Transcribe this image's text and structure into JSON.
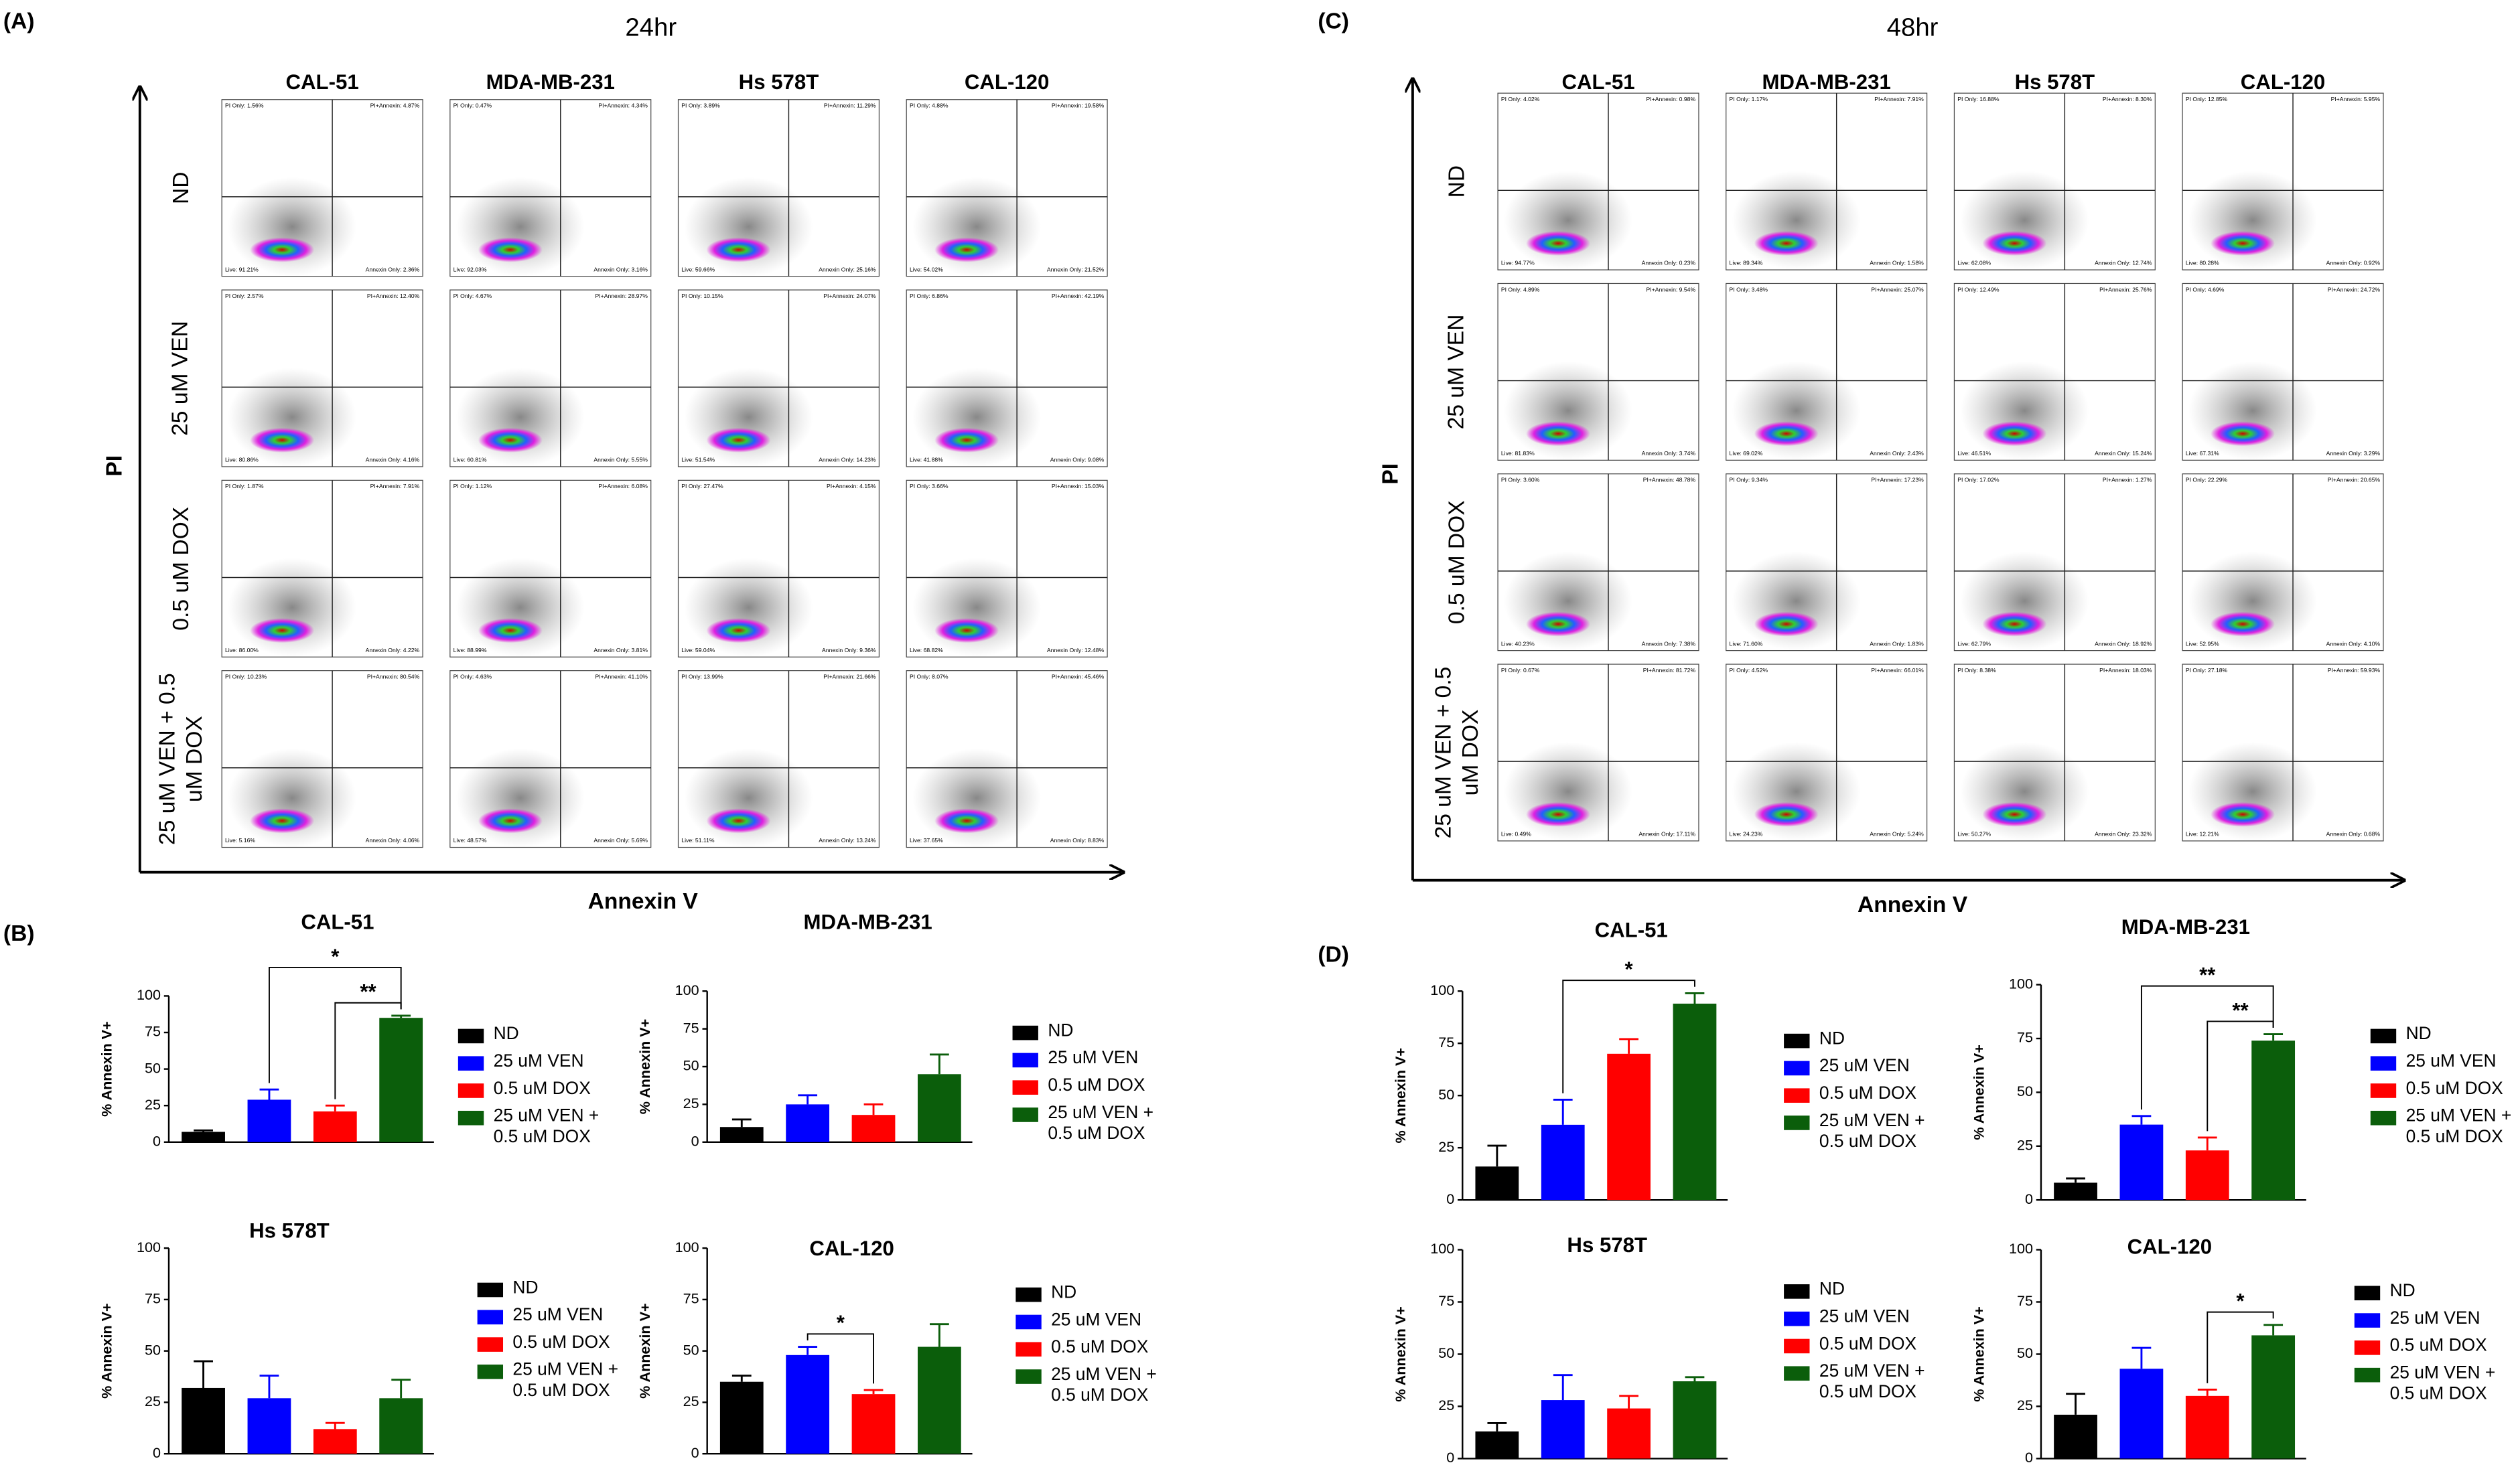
{
  "panels": [
    {
      "label": "(A)",
      "title": "24hr",
      "y_label": "PI",
      "x_label": "Annexin V",
      "columns": [
        "CAL-51",
        "MDA-MB-231",
        "Hs 578T",
        "CAL-120"
      ],
      "rows": [
        "ND",
        "25 uM VEN",
        "0.5 uM DOX",
        "25 uM VEN + 0.5 uM DOX"
      ],
      "plots": [
        [
          [
            "PI Only: 1.56%",
            "PI+Annexin: 4.87%",
            "Live: 91.21%",
            "Annexin Only: 2.36%"
          ],
          [
            "PI Only: 0.47%",
            "PI+Annexin: 4.34%",
            "Live: 92.03%",
            "Annexin Only: 3.16%"
          ],
          [
            "PI Only: 3.89%",
            "PI+Annexin: 11.29%",
            "Live: 59.66%",
            "Annexin Only: 25.16%"
          ],
          [
            "PI Only: 4.88%",
            "PI+Annexin: 19.58%",
            "Live: 54.02%",
            "Annexin Only: 21.52%"
          ]
        ],
        [
          [
            "PI Only: 2.57%",
            "PI+Annexin: 12.40%",
            "Live: 80.86%",
            "Annexin Only: 4.16%"
          ],
          [
            "PI Only: 4.67%",
            "PI+Annexin: 28.97%",
            "Live: 60.81%",
            "Annexin Only: 5.55%"
          ],
          [
            "PI Only: 10.15%",
            "PI+Annexin: 24.07%",
            "Live: 51.54%",
            "Annexin Only: 14.23%"
          ],
          [
            "PI Only: 6.86%",
            "PI+Annexin: 42.19%",
            "Live: 41.88%",
            "Annexin Only: 9.08%"
          ]
        ],
        [
          [
            "PI Only: 1.87%",
            "PI+Annexin: 7.91%",
            "Live: 86.00%",
            "Annexin Only: 4.22%"
          ],
          [
            "PI Only: 1.12%",
            "PI+Annexin: 6.08%",
            "Live: 88.99%",
            "Annexin Only: 3.81%"
          ],
          [
            "PI Only: 27.47%",
            "PI+Annexin: 4.15%",
            "Live: 59.04%",
            "Annexin Only: 9.36%"
          ],
          [
            "PI Only: 3.66%",
            "PI+Annexin: 15.03%",
            "Live: 68.82%",
            "Annexin Only: 12.48%"
          ]
        ],
        [
          [
            "PI Only: 10.23%",
            "PI+Annexin: 80.54%",
            "Live: 5.16%",
            "Annexin Only: 4.06%"
          ],
          [
            "PI Only: 4.63%",
            "PI+Annexin: 41.10%",
            "Live: 48.57%",
            "Annexin Only: 5.69%"
          ],
          [
            "PI Only: 13.99%",
            "PI+Annexin: 21.66%",
            "Live: 51.11%",
            "Annexin Only: 13.24%"
          ],
          [
            "PI Only: 8.07%",
            "PI+Annexin: 45.46%",
            "Live: 37.65%",
            "Annexin Only: 8.83%"
          ]
        ]
      ]
    },
    {
      "label": "(C)",
      "title": "48hr",
      "y_label": "PI",
      "x_label": "Annexin V",
      "columns": [
        "CAL-51",
        "MDA-MB-231",
        "Hs 578T",
        "CAL-120"
      ],
      "rows": [
        "ND",
        "25 uM VEN",
        "0.5 uM DOX",
        "25 uM VEN + 0.5 uM DOX"
      ],
      "plots": [
        [
          [
            "PI Only: 4.02%",
            "PI+Annexin: 0.98%",
            "Live: 94.77%",
            "Annexin Only: 0.23%"
          ],
          [
            "PI Only: 1.17%",
            "PI+Annexin: 7.91%",
            "Live: 89.34%",
            "Annexin Only: 1.58%"
          ],
          [
            "PI Only: 16.88%",
            "PI+Annexin: 8.30%",
            "Live: 62.08%",
            "Annexin Only: 12.74%"
          ],
          [
            "PI Only: 12.85%",
            "PI+Annexin: 5.95%",
            "Live: 80.28%",
            "Annexin Only: 0.92%"
          ]
        ],
        [
          [
            "PI Only: 4.89%",
            "PI+Annexin: 9.54%",
            "Live: 81.83%",
            "Annexin Only: 3.74%"
          ],
          [
            "PI Only: 3.48%",
            "PI+Annexin: 25.07%",
            "Live: 69.02%",
            "Annexin Only: 2.43%"
          ],
          [
            "PI Only: 12.49%",
            "PI+Annexin: 25.76%",
            "Live: 46.51%",
            "Annexin Only: 15.24%"
          ],
          [
            "PI Only: 4.69%",
            "PI+Annexin: 24.72%",
            "Live: 67.31%",
            "Annexin Only: 3.29%"
          ]
        ],
        [
          [
            "PI Only: 3.60%",
            "PI+Annexin: 48.78%",
            "Live: 40.23%",
            "Annexin Only: 7.38%"
          ],
          [
            "PI Only: 9.34%",
            "PI+Annexin: 17.23%",
            "Live: 71.60%",
            "Annexin Only: 1.83%"
          ],
          [
            "PI Only: 17.02%",
            "PI+Annexin: 1.27%",
            "Live: 62.79%",
            "Annexin Only: 18.92%"
          ],
          [
            "PI Only: 22.29%",
            "PI+Annexin: 20.65%",
            "Live: 52.95%",
            "Annexin Only: 4.10%"
          ]
        ],
        [
          [
            "PI Only: 0.67%",
            "PI+Annexin: 81.72%",
            "Live: 0.49%",
            "Annexin Only: 17.11%"
          ],
          [
            "PI Only: 4.52%",
            "PI+Annexin: 66.01%",
            "Live: 24.23%",
            "Annexin Only: 5.24%"
          ],
          [
            "PI Only: 8.38%",
            "PI+Annexin: 18.03%",
            "Live: 50.27%",
            "Annexin Only: 23.32%"
          ],
          [
            "PI Only: 27.18%",
            "PI+Annexin: 59.93%",
            "Live: 12.21%",
            "Annexin Only: 0.68%"
          ]
        ]
      ]
    }
  ],
  "bar_panel_labels": [
    "(B)",
    "(D)"
  ],
  "chart_data": [
    {
      "type": "bar",
      "title": "CAL-51",
      "ylabel": "% Annexin V+",
      "categories": [
        "ND",
        "25 uM VEN",
        "0.5 uM DOX",
        "25 uM VEN + 0.5 uM DOX"
      ],
      "colors": [
        "#000000",
        "#0000ff",
        "#ff0000",
        "#0b5e0b"
      ],
      "values": [
        7,
        29,
        21,
        85
      ],
      "errors": [
        1,
        7,
        4,
        1.5
      ],
      "ylim": [
        0,
        100
      ],
      "yticks": [
        0,
        25,
        50,
        75,
        100
      ],
      "annotations": [
        {
          "label": "*",
          "from": 1,
          "to": 3
        },
        {
          "label": "**",
          "from": 2,
          "to": 3
        }
      ]
    },
    {
      "type": "bar",
      "title": "MDA-MB-231",
      "ylabel": "% Annexin V+",
      "categories": [
        "ND",
        "25 uM VEN",
        "0.5 uM DOX",
        "25 uM VEN + 0.5 uM DOX"
      ],
      "colors": [
        "#000000",
        "#0000ff",
        "#ff0000",
        "#0b5e0b"
      ],
      "values": [
        10,
        25,
        18,
        45
      ],
      "errors": [
        5,
        6,
        7,
        13
      ],
      "ylim": [
        0,
        100
      ],
      "yticks": [
        0,
        25,
        50,
        75,
        100
      ],
      "annotations": []
    },
    {
      "type": "bar",
      "title": "Hs 578T",
      "ylabel": "% Annexin V+",
      "categories": [
        "ND",
        "25 uM VEN",
        "0.5 uM DOX",
        "25 uM VEN + 0.5 uM DOX"
      ],
      "colors": [
        "#000000",
        "#0000ff",
        "#ff0000",
        "#0b5e0b"
      ],
      "values": [
        32,
        27,
        12,
        27
      ],
      "errors": [
        13,
        11,
        3,
        9
      ],
      "ylim": [
        0,
        100
      ],
      "yticks": [
        0,
        25,
        50,
        75,
        100
      ],
      "annotations": []
    },
    {
      "type": "bar",
      "title": "CAL-120",
      "ylabel": "% Annexin V+",
      "categories": [
        "ND",
        "25 uM VEN",
        "0.5 uM DOX",
        "25 uM VEN + 0.5 uM DOX"
      ],
      "colors": [
        "#000000",
        "#0000ff",
        "#ff0000",
        "#0b5e0b"
      ],
      "values": [
        35,
        48,
        29,
        52
      ],
      "errors": [
        3,
        4,
        2,
        11
      ],
      "ylim": [
        0,
        100
      ],
      "yticks": [
        0,
        25,
        50,
        75,
        100
      ],
      "annotations": [
        {
          "label": "*",
          "from": 1,
          "to": 2
        }
      ]
    },
    {
      "type": "bar",
      "title": "CAL-51",
      "ylabel": "% Annexin V+",
      "categories": [
        "ND",
        "25 uM VEN",
        "0.5 uM DOX",
        "25 uM VEN + 0.5 uM DOX"
      ],
      "colors": [
        "#000000",
        "#0000ff",
        "#ff0000",
        "#0b5e0b"
      ],
      "values": [
        16,
        36,
        70,
        94
      ],
      "errors": [
        10,
        12,
        7,
        5
      ],
      "ylim": [
        0,
        100
      ],
      "yticks": [
        0,
        25,
        50,
        75,
        100
      ],
      "annotations": [
        {
          "label": "*",
          "from": 1,
          "to": 3
        }
      ]
    },
    {
      "type": "bar",
      "title": "MDA-MB-231",
      "ylabel": "% Annexin V+",
      "categories": [
        "ND",
        "25 uM VEN",
        "0.5 uM DOX",
        "25 uM VEN + 0.5 uM DOX"
      ],
      "colors": [
        "#000000",
        "#0000ff",
        "#ff0000",
        "#0b5e0b"
      ],
      "values": [
        8,
        35,
        23,
        74
      ],
      "errors": [
        2,
        4,
        6,
        3
      ],
      "ylim": [
        0,
        100
      ],
      "yticks": [
        0,
        25,
        50,
        75,
        100
      ],
      "annotations": [
        {
          "label": "**",
          "from": 1,
          "to": 3
        },
        {
          "label": "**",
          "from": 2,
          "to": 3
        }
      ]
    },
    {
      "type": "bar",
      "title": "Hs 578T",
      "ylabel": "% Annexin V+",
      "categories": [
        "ND",
        "25 uM VEN",
        "0.5 uM DOX",
        "25 uM VEN + 0.5 uM DOX"
      ],
      "colors": [
        "#000000",
        "#0000ff",
        "#ff0000",
        "#0b5e0b"
      ],
      "values": [
        13,
        28,
        24,
        37
      ],
      "errors": [
        4,
        12,
        6,
        2
      ],
      "ylim": [
        0,
        100
      ],
      "yticks": [
        0,
        25,
        50,
        75,
        100
      ],
      "annotations": []
    },
    {
      "type": "bar",
      "title": "CAL-120",
      "ylabel": "% Annexin V+",
      "categories": [
        "ND",
        "25 uM VEN",
        "0.5 uM DOX",
        "25 uM VEN + 0.5 uM DOX"
      ],
      "colors": [
        "#000000",
        "#0000ff",
        "#ff0000",
        "#0b5e0b"
      ],
      "values": [
        21,
        43,
        30,
        59
      ],
      "errors": [
        10,
        10,
        3,
        5
      ],
      "ylim": [
        0,
        100
      ],
      "yticks": [
        0,
        25,
        50,
        75,
        100
      ],
      "annotations": [
        {
          "label": "*",
          "from": 2,
          "to": 3
        }
      ]
    }
  ]
}
